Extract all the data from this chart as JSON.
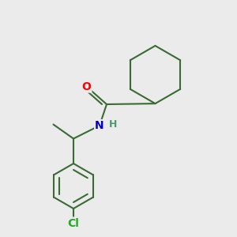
{
  "background_color": "#ebebeb",
  "bond_color": "#3a6b35",
  "bond_width": 1.5,
  "atom_colors": {
    "O": "#ff0000",
    "N": "#0000cc",
    "H_N": "#4a9a6a",
    "Cl": "#22aa22",
    "C": "#3a6b35"
  },
  "figsize": [
    3.0,
    3.0
  ],
  "dpi": 100,
  "xlim": [
    0,
    10
  ],
  "ylim": [
    0,
    10
  ]
}
